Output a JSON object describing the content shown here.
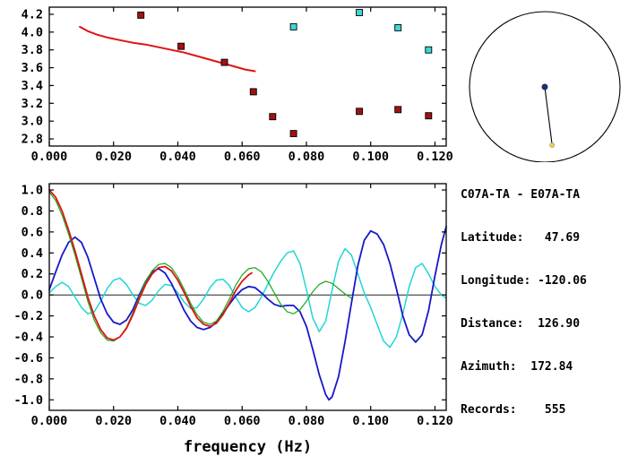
{
  "info_panel": {
    "station_pair": "C07A-TA - E07A-TA",
    "lines": [
      "Latitude:   47.69",
      "Longitude: -120.06",
      "Distance:  126.90",
      "Azimuth:  172.84",
      "Records:    555"
    ]
  },
  "compass": {
    "azimuth_deg": 172.84,
    "circle_color": "#000000",
    "center_dot_color": "#1f2d6e",
    "end_dot_color": "#ecd83c"
  },
  "chart_data": [
    {
      "type": "scatter",
      "name": "phase-velocity-dispersion",
      "xlim": [
        0,
        0.1235
      ],
      "ylim": [
        2.72,
        4.28
      ],
      "xticks": [
        0,
        0.02,
        0.04,
        0.06,
        0.08,
        0.1,
        0.12
      ],
      "xtick_labels": [
        "0.000",
        "0.020",
        "0.040",
        "0.060",
        "0.080",
        "0.100",
        "0.120"
      ],
      "yticks": [
        2.8,
        3.0,
        3.2,
        3.4,
        3.6,
        3.8,
        4.0,
        4.2
      ],
      "ytick_labels": [
        "2.8",
        "3.0",
        "3.2",
        "3.4",
        "3.6",
        "3.8",
        "4.0",
        "4.2"
      ],
      "xlabel": "",
      "grid": false,
      "series": [
        {
          "name": "reference-dispersion-curve",
          "type": "line",
          "color": "#e01212",
          "width": 2,
          "points": [
            [
              0.0095,
              4.06
            ],
            [
              0.012,
              4.01
            ],
            [
              0.015,
              3.97
            ],
            [
              0.018,
              3.94
            ],
            [
              0.022,
              3.91
            ],
            [
              0.026,
              3.88
            ],
            [
              0.03,
              3.86
            ],
            [
              0.034,
              3.83
            ],
            [
              0.038,
              3.8
            ],
            [
              0.042,
              3.77
            ],
            [
              0.046,
              3.73
            ],
            [
              0.05,
              3.69
            ],
            [
              0.054,
              3.65
            ],
            [
              0.058,
              3.61
            ],
            [
              0.061,
              3.58
            ],
            [
              0.064,
              3.56
            ]
          ]
        },
        {
          "name": "measured-phase-velocity-points",
          "type": "square",
          "color": "#a01212",
          "points": [
            [
              0.0285,
              4.19
            ],
            [
              0.041,
              3.84
            ],
            [
              0.0545,
              3.66
            ],
            [
              0.0635,
              3.33
            ],
            [
              0.0695,
              3.05
            ],
            [
              0.076,
              2.86
            ],
            [
              0.0965,
              3.11
            ],
            [
              0.1085,
              3.13
            ],
            [
              0.118,
              3.06
            ]
          ]
        },
        {
          "name": "alternate-branch-points",
          "type": "square",
          "color": "#3fd6d6",
          "points": [
            [
              0.076,
              4.06
            ],
            [
              0.0965,
              4.22
            ],
            [
              0.1085,
              4.05
            ],
            [
              0.118,
              3.8
            ]
          ]
        }
      ]
    },
    {
      "type": "line",
      "name": "cross-correlation-waveforms",
      "xlim": [
        0,
        0.1235
      ],
      "ylim": [
        -1.1,
        1.06
      ],
      "xticks": [
        0,
        0.02,
        0.04,
        0.06,
        0.08,
        0.1,
        0.12
      ],
      "xtick_labels": [
        "0.000",
        "0.020",
        "0.040",
        "0.060",
        "0.080",
        "0.100",
        "0.120"
      ],
      "yticks": [
        1.0,
        0.8,
        0.6,
        0.4,
        0.2,
        0.0,
        -0.2,
        -0.4,
        -0.6,
        -0.8,
        -1.0
      ],
      "ytick_labels": [
        "1.0",
        "0.8",
        "0.6",
        "0.4",
        "0.2",
        "0.0",
        "-0.2",
        "-0.4",
        "-0.6",
        "-0.8",
        "-1.0"
      ],
      "xlabel": "frequency (Hz)",
      "zero_line": true,
      "grid": false,
      "series": [
        {
          "name": "waveform-cyan",
          "type": "line",
          "color": "#22d6d6",
          "width": 1.5,
          "points": [
            [
              0,
              0.02
            ],
            [
              0.002,
              0.08
            ],
            [
              0.004,
              0.12
            ],
            [
              0.006,
              0.08
            ],
            [
              0.008,
              -0.02
            ],
            [
              0.01,
              -0.12
            ],
            [
              0.012,
              -0.18
            ],
            [
              0.014,
              -0.16
            ],
            [
              0.016,
              -0.06
            ],
            [
              0.018,
              0.06
            ],
            [
              0.02,
              0.14
            ],
            [
              0.022,
              0.16
            ],
            [
              0.024,
              0.1
            ],
            [
              0.026,
              0.0
            ],
            [
              0.028,
              -0.08
            ],
            [
              0.03,
              -0.1
            ],
            [
              0.032,
              -0.05
            ],
            [
              0.034,
              0.04
            ],
            [
              0.036,
              0.1
            ],
            [
              0.038,
              0.09
            ],
            [
              0.04,
              0.02
            ],
            [
              0.042,
              -0.07
            ],
            [
              0.044,
              -0.13
            ],
            [
              0.046,
              -0.12
            ],
            [
              0.048,
              -0.04
            ],
            [
              0.05,
              0.07
            ],
            [
              0.052,
              0.14
            ],
            [
              0.054,
              0.15
            ],
            [
              0.056,
              0.09
            ],
            [
              0.058,
              -0.02
            ],
            [
              0.06,
              -0.12
            ],
            [
              0.062,
              -0.16
            ],
            [
              0.064,
              -0.12
            ],
            [
              0.066,
              -0.02
            ],
            [
              0.068,
              0.1
            ],
            [
              0.07,
              0.22
            ],
            [
              0.072,
              0.32
            ],
            [
              0.074,
              0.4
            ],
            [
              0.076,
              0.42
            ],
            [
              0.078,
              0.3
            ],
            [
              0.08,
              0.05
            ],
            [
              0.082,
              -0.22
            ],
            [
              0.084,
              -0.35
            ],
            [
              0.086,
              -0.25
            ],
            [
              0.088,
              0.05
            ],
            [
              0.09,
              0.32
            ],
            [
              0.092,
              0.44
            ],
            [
              0.094,
              0.38
            ],
            [
              0.096,
              0.2
            ],
            [
              0.098,
              0.02
            ],
            [
              0.1,
              -0.12
            ],
            [
              0.102,
              -0.28
            ],
            [
              0.104,
              -0.44
            ],
            [
              0.106,
              -0.5
            ],
            [
              0.108,
              -0.4
            ],
            [
              0.11,
              -0.18
            ],
            [
              0.112,
              0.08
            ],
            [
              0.114,
              0.26
            ],
            [
              0.116,
              0.3
            ],
            [
              0.118,
              0.2
            ],
            [
              0.12,
              0.08
            ],
            [
              0.122,
              0.0
            ],
            [
              0.1235,
              -0.03
            ]
          ]
        },
        {
          "name": "waveform-blue",
          "type": "line",
          "color": "#1818c8",
          "width": 1.8,
          "points": [
            [
              0,
              0.05
            ],
            [
              0.002,
              0.22
            ],
            [
              0.004,
              0.38
            ],
            [
              0.006,
              0.5
            ],
            [
              0.008,
              0.55
            ],
            [
              0.01,
              0.5
            ],
            [
              0.012,
              0.36
            ],
            [
              0.014,
              0.16
            ],
            [
              0.016,
              -0.04
            ],
            [
              0.018,
              -0.18
            ],
            [
              0.02,
              -0.26
            ],
            [
              0.022,
              -0.28
            ],
            [
              0.024,
              -0.24
            ],
            [
              0.026,
              -0.14
            ],
            [
              0.028,
              0.0
            ],
            [
              0.03,
              0.13
            ],
            [
              0.032,
              0.22
            ],
            [
              0.034,
              0.25
            ],
            [
              0.036,
              0.21
            ],
            [
              0.038,
              0.11
            ],
            [
              0.04,
              -0.02
            ],
            [
              0.042,
              -0.15
            ],
            [
              0.044,
              -0.25
            ],
            [
              0.046,
              -0.31
            ],
            [
              0.048,
              -0.33
            ],
            [
              0.05,
              -0.31
            ],
            [
              0.052,
              -0.26
            ],
            [
              0.054,
              -0.18
            ],
            [
              0.056,
              -0.09
            ],
            [
              0.058,
              -0.01
            ],
            [
              0.06,
              0.05
            ],
            [
              0.062,
              0.08
            ],
            [
              0.064,
              0.07
            ],
            [
              0.066,
              0.02
            ],
            [
              0.068,
              -0.04
            ],
            [
              0.07,
              -0.09
            ],
            [
              0.072,
              -0.11
            ],
            [
              0.074,
              -0.1
            ],
            [
              0.076,
              -0.1
            ],
            [
              0.078,
              -0.16
            ],
            [
              0.08,
              -0.3
            ],
            [
              0.082,
              -0.52
            ],
            [
              0.084,
              -0.76
            ],
            [
              0.086,
              -0.95
            ],
            [
              0.087,
              -1.0
            ],
            [
              0.088,
              -0.97
            ],
            [
              0.09,
              -0.78
            ],
            [
              0.092,
              -0.45
            ],
            [
              0.094,
              -0.08
            ],
            [
              0.096,
              0.28
            ],
            [
              0.098,
              0.52
            ],
            [
              0.1,
              0.61
            ],
            [
              0.102,
              0.58
            ],
            [
              0.104,
              0.48
            ],
            [
              0.106,
              0.3
            ],
            [
              0.108,
              0.06
            ],
            [
              0.11,
              -0.2
            ],
            [
              0.112,
              -0.38
            ],
            [
              0.114,
              -0.45
            ],
            [
              0.116,
              -0.38
            ],
            [
              0.118,
              -0.15
            ],
            [
              0.12,
              0.18
            ],
            [
              0.122,
              0.48
            ],
            [
              0.1235,
              0.65
            ]
          ]
        },
        {
          "name": "waveform-green",
          "type": "line",
          "color": "#18a818",
          "width": 1.2,
          "points": [
            [
              0,
              0.98
            ],
            [
              0.002,
              0.9
            ],
            [
              0.004,
              0.76
            ],
            [
              0.006,
              0.58
            ],
            [
              0.008,
              0.38
            ],
            [
              0.01,
              0.16
            ],
            [
              0.012,
              -0.06
            ],
            [
              0.014,
              -0.24
            ],
            [
              0.016,
              -0.36
            ],
            [
              0.018,
              -0.43
            ],
            [
              0.02,
              -0.44
            ],
            [
              0.022,
              -0.4
            ],
            [
              0.024,
              -0.31
            ],
            [
              0.026,
              -0.17
            ],
            [
              0.028,
              -0.02
            ],
            [
              0.03,
              0.13
            ],
            [
              0.032,
              0.23
            ],
            [
              0.034,
              0.29
            ],
            [
              0.036,
              0.3
            ],
            [
              0.038,
              0.26
            ],
            [
              0.04,
              0.17
            ],
            [
              0.042,
              0.05
            ],
            [
              0.044,
              -0.08
            ],
            [
              0.046,
              -0.19
            ],
            [
              0.048,
              -0.26
            ],
            [
              0.05,
              -0.28
            ],
            [
              0.052,
              -0.25
            ],
            [
              0.054,
              -0.16
            ],
            [
              0.056,
              -0.04
            ],
            [
              0.058,
              0.09
            ],
            [
              0.06,
              0.19
            ],
            [
              0.062,
              0.25
            ],
            [
              0.064,
              0.26
            ],
            [
              0.066,
              0.22
            ],
            [
              0.068,
              0.13
            ],
            [
              0.07,
              0.02
            ],
            [
              0.072,
              -0.09
            ],
            [
              0.074,
              -0.16
            ],
            [
              0.076,
              -0.18
            ],
            [
              0.078,
              -0.14
            ],
            [
              0.08,
              -0.06
            ],
            [
              0.082,
              0.03
            ],
            [
              0.084,
              0.1
            ],
            [
              0.086,
              0.13
            ],
            [
              0.088,
              0.11
            ],
            [
              0.09,
              0.06
            ],
            [
              0.092,
              0.01
            ],
            [
              0.094,
              -0.03
            ]
          ]
        },
        {
          "name": "waveform-red",
          "type": "line",
          "color": "#e01212",
          "width": 1.8,
          "points": [
            [
              0,
              1.0
            ],
            [
              0.002,
              0.93
            ],
            [
              0.004,
              0.8
            ],
            [
              0.006,
              0.62
            ],
            [
              0.008,
              0.42
            ],
            [
              0.01,
              0.2
            ],
            [
              0.012,
              -0.02
            ],
            [
              0.014,
              -0.2
            ],
            [
              0.016,
              -0.33
            ],
            [
              0.018,
              -0.41
            ],
            [
              0.02,
              -0.43
            ],
            [
              0.022,
              -0.4
            ],
            [
              0.024,
              -0.32
            ],
            [
              0.026,
              -0.19
            ],
            [
              0.028,
              -0.04
            ],
            [
              0.03,
              0.1
            ],
            [
              0.032,
              0.2
            ],
            [
              0.034,
              0.26
            ],
            [
              0.036,
              0.27
            ],
            [
              0.038,
              0.23
            ],
            [
              0.04,
              0.14
            ],
            [
              0.042,
              0.02
            ],
            [
              0.044,
              -0.11
            ],
            [
              0.046,
              -0.22
            ],
            [
              0.048,
              -0.28
            ],
            [
              0.05,
              -0.3
            ],
            [
              0.052,
              -0.27
            ],
            [
              0.054,
              -0.19
            ],
            [
              0.056,
              -0.08
            ],
            [
              0.058,
              0.04
            ],
            [
              0.06,
              0.13
            ],
            [
              0.062,
              0.19
            ],
            [
              0.063,
              0.21
            ]
          ]
        }
      ]
    }
  ]
}
